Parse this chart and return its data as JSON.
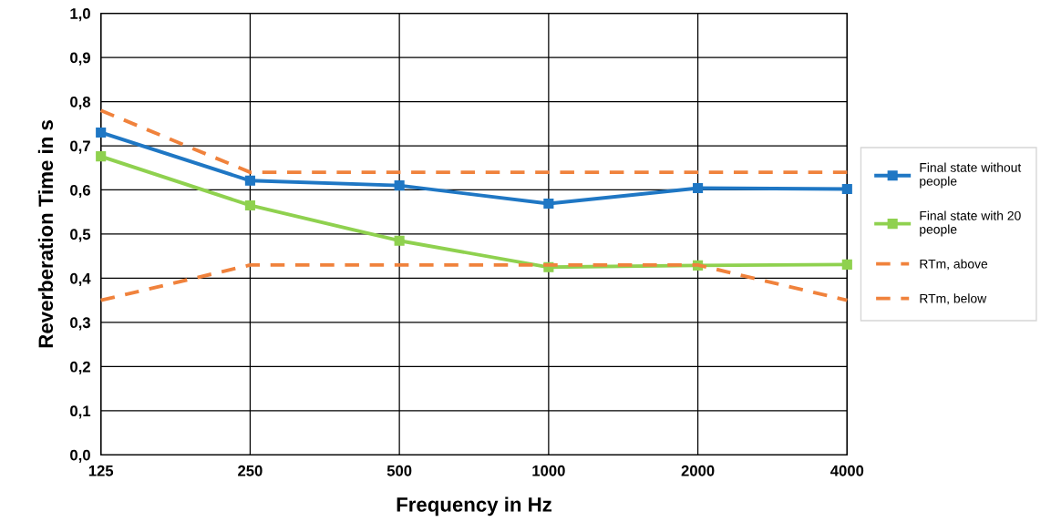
{
  "chart_data": {
    "type": "line",
    "xlabel": "Frequency in Hz",
    "ylabel": "Reverberation Time in s",
    "categories": [
      "125",
      "250",
      "500",
      "1000",
      "2000",
      "4000"
    ],
    "series": [
      {
        "name": "Final state without people",
        "color": "#1f77c4",
        "marker": "square",
        "line_style": "solid",
        "values": [
          0.73,
          0.621,
          0.61,
          0.569,
          0.604,
          0.602
        ]
      },
      {
        "name": "Final state with 20 people",
        "color": "#8fd14f",
        "marker": "square",
        "line_style": "solid",
        "values": [
          0.676,
          0.565,
          0.485,
          0.425,
          0.429,
          0.431
        ]
      },
      {
        "name": "RTm, above",
        "color": "#f0823c",
        "marker": "none",
        "line_style": "dashed",
        "values": [
          0.78,
          0.64,
          0.64,
          0.64,
          0.64,
          0.64
        ]
      },
      {
        "name": "RTm, below",
        "color": "#f0823c",
        "marker": "none",
        "line_style": "dashed",
        "values": [
          0.35,
          0.43,
          0.43,
          0.43,
          0.43,
          0.35
        ]
      }
    ],
    "ylim": [
      0,
      1
    ],
    "yticks": [
      {
        "value": 0,
        "label": "0,0"
      },
      {
        "value": 0.1,
        "label": "0,1"
      },
      {
        "value": 0.2,
        "label": "0,2"
      },
      {
        "value": 0.3,
        "label": "0,3"
      },
      {
        "value": 0.4,
        "label": "0,4"
      },
      {
        "value": 0.5,
        "label": "0,5"
      },
      {
        "value": 0.6,
        "label": "0,6"
      },
      {
        "value": 0.7,
        "label": "0,7"
      },
      {
        "value": 0.8,
        "label": "0,8"
      },
      {
        "value": 0.9,
        "label": "0,9"
      },
      {
        "value": 1,
        "label": "1,0"
      }
    ],
    "grid": true,
    "legend": "right"
  }
}
